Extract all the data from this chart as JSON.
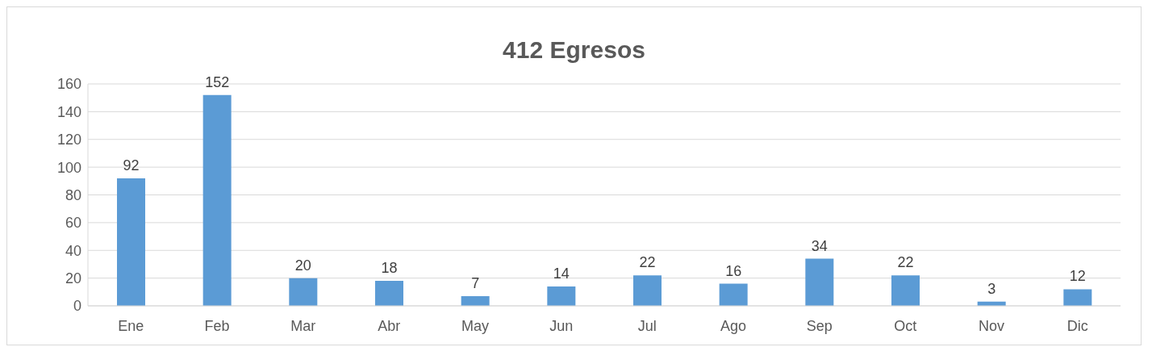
{
  "chart_data": {
    "type": "bar",
    "title": "412 Egresos",
    "categories": [
      "Ene",
      "Feb",
      "Mar",
      "Abr",
      "May",
      "Jun",
      "Jul",
      "Ago",
      "Sep",
      "Oct",
      "Nov",
      "Dic"
    ],
    "values": [
      92,
      152,
      20,
      18,
      7,
      14,
      22,
      16,
      34,
      22,
      3,
      12
    ],
    "color": "#5b9bd5",
    "ylim": [
      0,
      160
    ],
    "yticks": [
      0,
      20,
      40,
      60,
      80,
      100,
      120,
      140,
      160
    ],
    "grid": "y",
    "data_labels": true,
    "legend": false
  }
}
